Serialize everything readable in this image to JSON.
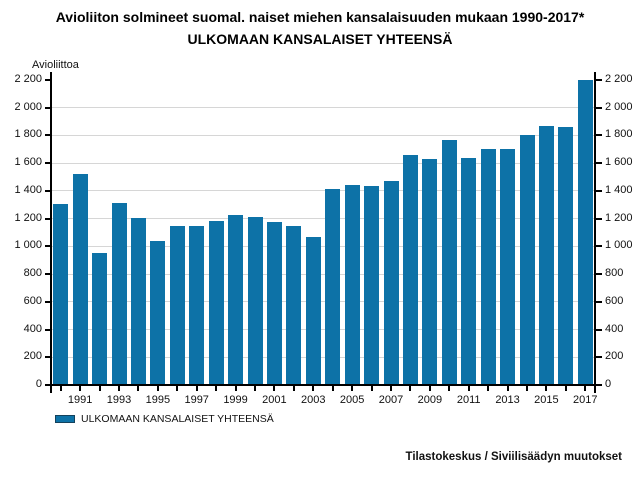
{
  "footer": {
    "credit": "Tilastokeskus / Siviilisäädyn muutokset"
  },
  "colors": {
    "bar": "#0d72a7",
    "grid": "#d6d6d6",
    "axis": "#000000",
    "legend_border": "#14425c"
  },
  "chart_data": {
    "type": "bar",
    "title": "Avioliiton solmineet suomal. naiset miehen kansalaisuuden mukaan 1990-2017*",
    "subtitle": "ULKOMAAN KANSALAISET YHTEENSÄ",
    "ylabel": "Avioliittoa",
    "xlabel": "",
    "ylim": [
      0,
      2200
    ],
    "ytick_step": 200,
    "ytick_labels": [
      "0",
      "200",
      "400",
      "600",
      "800",
      "1 000",
      "1 200",
      "1 400",
      "1 600",
      "1 800",
      "2 000",
      "2 200"
    ],
    "grid": true,
    "legend_entries": [
      "ULKOMAAN KANSALAISET YHTEENSÄ"
    ],
    "legend_position": "bottom-left",
    "categories": [
      "1990",
      "1991",
      "1992",
      "1993",
      "1994",
      "1995",
      "1996",
      "1997",
      "1998",
      "1999",
      "2000",
      "2001",
      "2002",
      "2003",
      "2004",
      "2005",
      "2006",
      "2007",
      "2008",
      "2009",
      "2010",
      "2011",
      "2012",
      "2013",
      "2014",
      "2015",
      "2016",
      "2017"
    ],
    "xtick_labels": [
      "1991",
      "1993",
      "1995",
      "1997",
      "1999",
      "2001",
      "2003",
      "2005",
      "2007",
      "2009",
      "2011",
      "2013",
      "2015",
      "2017"
    ],
    "values": [
      1305,
      1520,
      955,
      1310,
      1205,
      1040,
      1150,
      1145,
      1180,
      1225,
      1215,
      1175,
      1150,
      1065,
      1415,
      1440,
      1435,
      1470,
      1660,
      1630,
      1770,
      1640,
      1700,
      1700,
      1800,
      1870,
      1860,
      2200
    ]
  }
}
